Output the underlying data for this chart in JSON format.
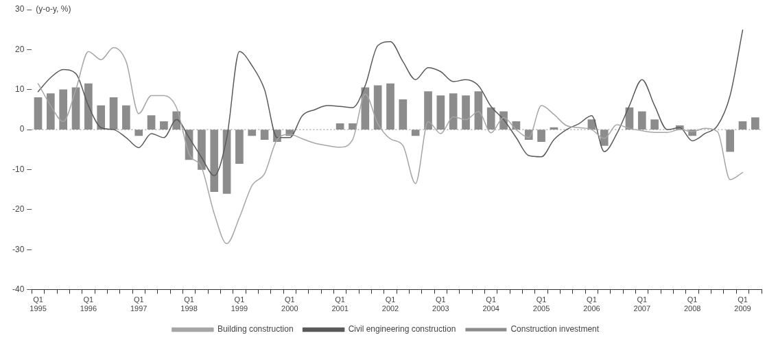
{
  "chart_data": {
    "type": "bar",
    "ylabel": "(y-o-y, %)",
    "categories": [
      "Q1\n1995",
      null,
      null,
      null,
      "Q1\n1996",
      null,
      null,
      null,
      "Q1\n1997",
      null,
      null,
      null,
      "Q1\n1998",
      null,
      null,
      null,
      "Q1\n1999",
      null,
      null,
      null,
      "Q1\n2000",
      null,
      null,
      null,
      "Q1\n2001",
      null,
      null,
      null,
      "Q1\n2002",
      null,
      null,
      null,
      "Q1\n2003",
      null,
      null,
      null,
      "Q1\n2004",
      null,
      null,
      null,
      "Q1\n2005",
      null,
      null,
      null,
      "Q1\n2006",
      null,
      null,
      null,
      "Q1\n2007",
      null,
      null,
      null,
      "Q1\n2008",
      null,
      null,
      null,
      "Q1\n2009",
      null
    ],
    "series": [
      {
        "name": "Construction investment",
        "color": "#8c8c8c",
        "values": [
          8,
          9,
          10,
          10.5,
          11.5,
          6,
          8,
          6,
          -1.5,
          3.5,
          2,
          4.5,
          -7.5,
          -10,
          -15.5,
          -16,
          -8.5,
          -1.5,
          -2.5,
          -3,
          -1.5,
          null,
          null,
          null,
          1.5,
          1.5,
          10.5,
          11,
          11.5,
          7.5,
          -1.5,
          9.5,
          8.5,
          9,
          8.5,
          9.5,
          5.5,
          4.5,
          2,
          -2.5,
          -3,
          0.5,
          null,
          null,
          2.5,
          -4,
          null,
          5.5,
          4.5,
          2.5,
          null,
          1,
          -1.5,
          null,
          null,
          -5.5,
          2,
          3
        ]
      },
      {
        "name": "Building construction",
        "type": "line",
        "color": "#a6a6a6",
        "values": [
          11.5,
          6,
          2,
          10,
          19.5,
          17.5,
          20.5,
          17,
          4,
          8.5,
          8.5,
          5.5,
          -6,
          -9.5,
          -21,
          -28.5,
          -22,
          -14,
          -11,
          -2.5,
          -1.2,
          -2.3,
          -3.4,
          -4,
          -4.4,
          -2.5,
          8.9,
          1.5,
          -2.3,
          -4,
          -13.5,
          2,
          -1,
          3.2,
          2.5,
          4.5,
          -0.8,
          3,
          0,
          -2,
          6,
          3.8,
          1,
          0.5,
          0,
          -2.2,
          1.2,
          0.3,
          -0.3,
          -0.7,
          -0.7,
          0,
          -0.5,
          0.3,
          -0.5,
          -12.5,
          -10.7,
          null
        ]
      },
      {
        "name": "Civil engineering construction",
        "type": "line",
        "color": "#5a5a5a",
        "values": [
          9.5,
          13,
          15,
          14,
          6,
          0.5,
          0,
          -2,
          -4.5,
          -1,
          -2,
          2.5,
          -2,
          -7,
          -11.5,
          -2,
          19.5,
          16,
          10,
          -2,
          -2,
          3.5,
          5,
          6,
          5.8,
          5.5,
          11,
          21,
          22,
          17,
          12.5,
          15.5,
          14.5,
          12,
          12.5,
          11,
          5.8,
          2.5,
          -2,
          -6.5,
          -6.8,
          -2.5,
          0,
          1.5,
          3.5,
          -5.5,
          -1,
          6,
          12.5,
          6,
          0,
          0.5,
          -2.8,
          -1,
          1,
          8.5,
          24.9,
          null
        ]
      }
    ],
    "ylim": [
      -40,
      30
    ],
    "yticks": [
      -40,
      -30,
      -20,
      -10,
      0,
      10,
      20,
      30
    ],
    "ref_lines": [
      {
        "axis": "y",
        "value": 0,
        "color": "#888888",
        "line_style": "dotted"
      }
    ],
    "legend": "bottom"
  }
}
